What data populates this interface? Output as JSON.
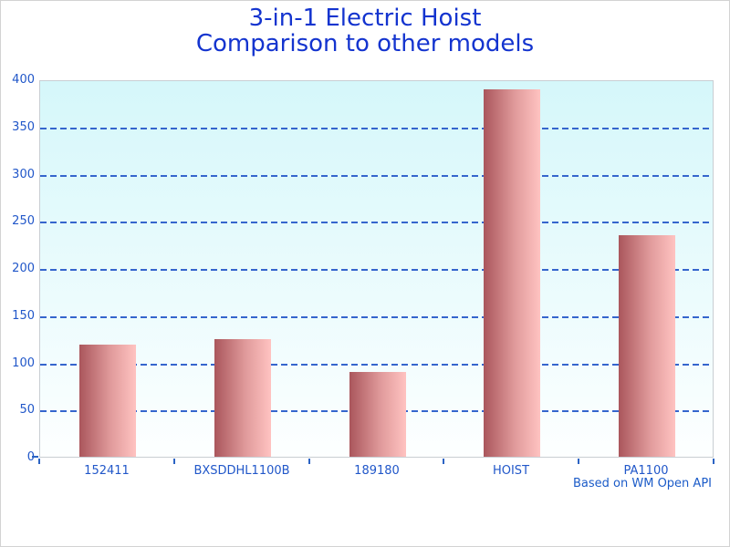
{
  "window": {
    "background": "#ffffff",
    "border_color": "#d3d3d3"
  },
  "title": {
    "line1": "3-in-1 Electric Hoist",
    "line2": "Comparison to other models",
    "color": "#1434cf"
  },
  "footer": {
    "text": "Based on WM Open API",
    "color": "#1b5bc8"
  },
  "chart_data": {
    "type": "bar",
    "title": "3-in-1 Electric Hoist — Comparison to other models",
    "categories": [
      "152411",
      "BXSDDHL1100B",
      "189180",
      "HOIST",
      "PA1100"
    ],
    "values": [
      119,
      125,
      90,
      389,
      235
    ],
    "xlabel": "",
    "ylabel": "",
    "ylim": [
      0,
      400
    ],
    "y_ticks": [
      0,
      50,
      100,
      150,
      200,
      250,
      300,
      350,
      400
    ],
    "grid": "horizontal dashed, behind bars",
    "legend": "none",
    "colors": {
      "bar_gradient_left": "#aa565c",
      "bar_gradient_mid": "#e09a9b",
      "bar_gradient_right": "#ffc3c1",
      "plot_bg_top": "#d5f7fa",
      "plot_bg_bottom": "#fdffff",
      "gridline": "#3565cd",
      "tick": "#2b63c4",
      "tick_label": "#2157c9"
    }
  }
}
